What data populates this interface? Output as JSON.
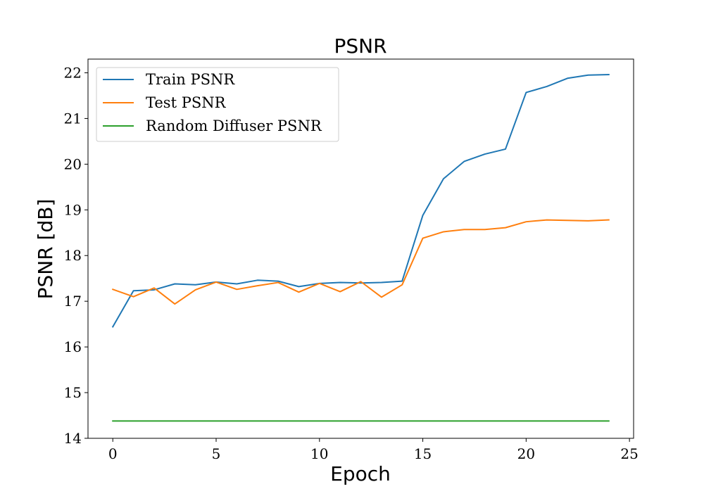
{
  "chart_data": {
    "type": "line",
    "title": "PSNR",
    "xlabel": "Epoch",
    "ylabel": "PSNR [dB]",
    "xlim": [
      -1.2,
      25.2
    ],
    "ylim": [
      14,
      22.3
    ],
    "xticks": [
      0,
      5,
      10,
      15,
      20,
      25
    ],
    "yticks": [
      14,
      15,
      16,
      17,
      18,
      19,
      20,
      21,
      22
    ],
    "grid": false,
    "legend_position": "upper-left",
    "x": [
      0,
      1,
      2,
      3,
      4,
      5,
      6,
      7,
      8,
      9,
      10,
      11,
      12,
      13,
      14,
      15,
      16,
      17,
      18,
      19,
      20,
      21,
      22,
      23,
      24
    ],
    "series": [
      {
        "name": "Train PSNR",
        "color": "#1f77b4",
        "values": [
          16.44,
          17.23,
          17.25,
          17.38,
          17.36,
          17.42,
          17.38,
          17.46,
          17.44,
          17.32,
          17.39,
          17.41,
          17.4,
          17.41,
          17.44,
          18.88,
          19.68,
          20.06,
          20.22,
          20.33,
          21.57,
          21.7,
          21.88,
          21.95,
          21.96
        ]
      },
      {
        "name": "Test PSNR",
        "color": "#ff7f0e",
        "values": [
          17.26,
          17.1,
          17.29,
          16.94,
          17.25,
          17.42,
          17.26,
          17.34,
          17.41,
          17.2,
          17.39,
          17.21,
          17.43,
          17.09,
          17.36,
          18.38,
          18.52,
          18.57,
          18.57,
          18.61,
          18.74,
          18.78,
          18.77,
          18.76,
          18.78
        ]
      },
      {
        "name": "Random Diffuser PSNR",
        "color": "#2ca02c",
        "values": [
          14.38,
          14.38,
          14.38,
          14.38,
          14.38,
          14.38,
          14.38,
          14.38,
          14.38,
          14.38,
          14.38,
          14.38,
          14.38,
          14.38,
          14.38,
          14.38,
          14.38,
          14.38,
          14.38,
          14.38,
          14.38,
          14.38,
          14.38,
          14.38,
          14.38
        ]
      }
    ]
  }
}
